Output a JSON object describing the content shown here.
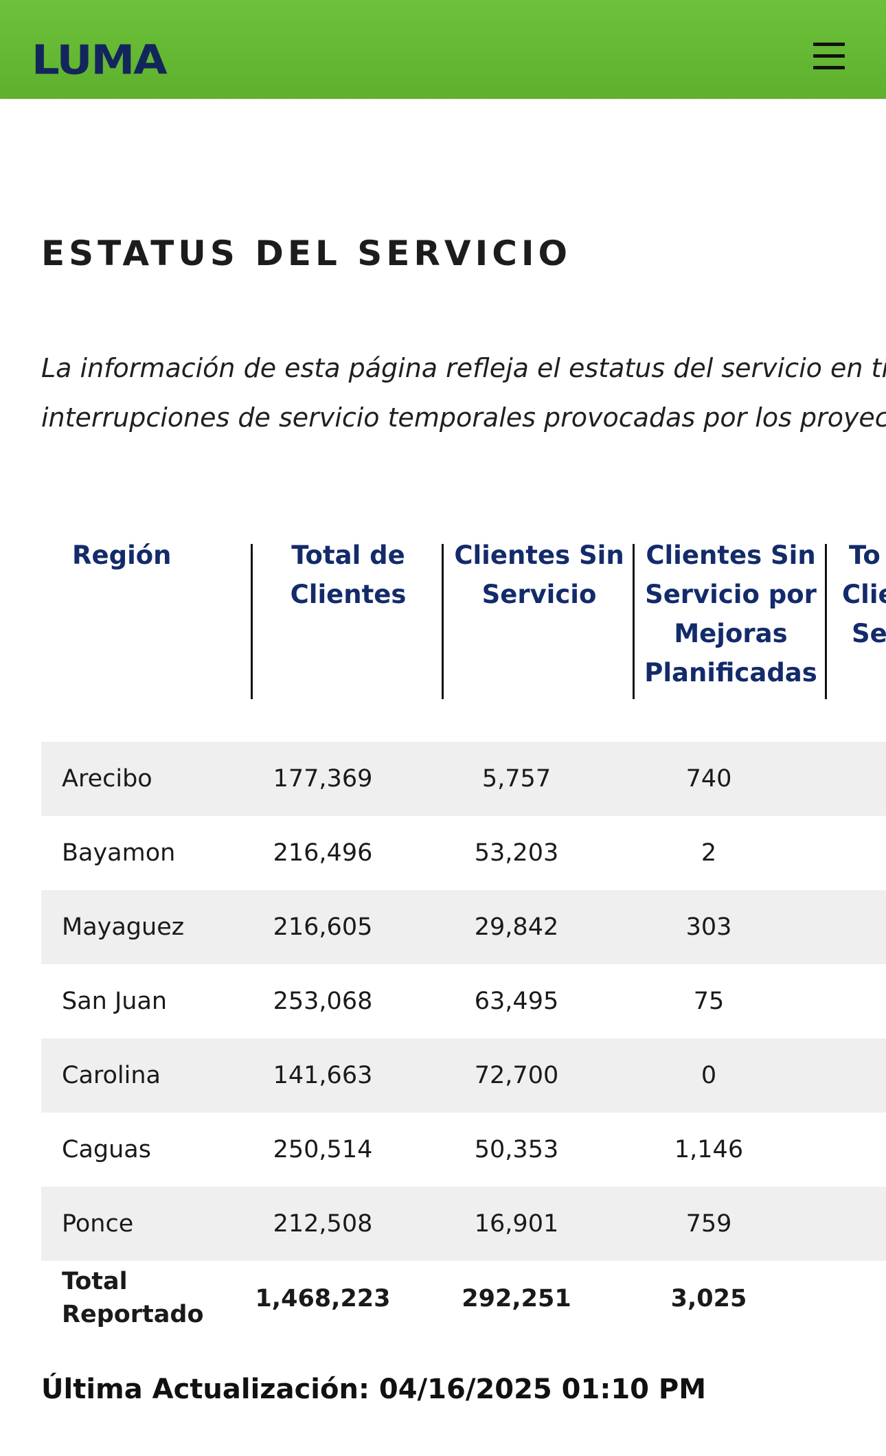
{
  "header": {
    "logo_text": "LUMA",
    "brand_colors": {
      "bar": "#6cc13a",
      "logo": "#13265c"
    },
    "menu_icon": "hamburger-menu-icon"
  },
  "page": {
    "title": "ESTATUS DEL SERVICIO",
    "intro_line1": "La información de esta página refleja el estatus del servicio en tiempo",
    "intro_line2": "interrupciones de servicio temporales provocadas por los proyectos d"
  },
  "table": {
    "columns": [
      {
        "lines": [
          "Región"
        ]
      },
      {
        "lines": [
          "Total de",
          "Clientes"
        ]
      },
      {
        "lines": [
          "Clientes Sin",
          "Servicio"
        ]
      },
      {
        "lines": [
          "Clientes Sin",
          "Servicio por",
          "Mejoras",
          "Planificadas"
        ]
      },
      {
        "lines": [
          "To",
          "Clie",
          "Se"
        ]
      }
    ],
    "rows": [
      {
        "region": "Arecibo",
        "total": "177,369",
        "sin_servicio": "5,757",
        "planificadas": "740"
      },
      {
        "region": "Bayamon",
        "total": "216,496",
        "sin_servicio": "53,203",
        "planificadas": "2"
      },
      {
        "region": "Mayaguez",
        "total": "216,605",
        "sin_servicio": "29,842",
        "planificadas": "303"
      },
      {
        "region": "San Juan",
        "total": "253,068",
        "sin_servicio": "63,495",
        "planificadas": "75"
      },
      {
        "region": "Carolina",
        "total": "141,663",
        "sin_servicio": "72,700",
        "planificadas": "0"
      },
      {
        "region": "Caguas",
        "total": "250,514",
        "sin_servicio": "50,353",
        "planificadas": "1,146"
      },
      {
        "region": "Ponce",
        "total": "212,508",
        "sin_servicio": "16,901",
        "planificadas": "759"
      }
    ],
    "total_row": {
      "label_line1": "Total",
      "label_line2": "Reportado",
      "total": "1,468,223",
      "sin_servicio": "292,251",
      "planificadas": "3,025"
    }
  },
  "footer": {
    "last_updated": "Última Actualización: 04/16/2025 01:10 PM"
  }
}
